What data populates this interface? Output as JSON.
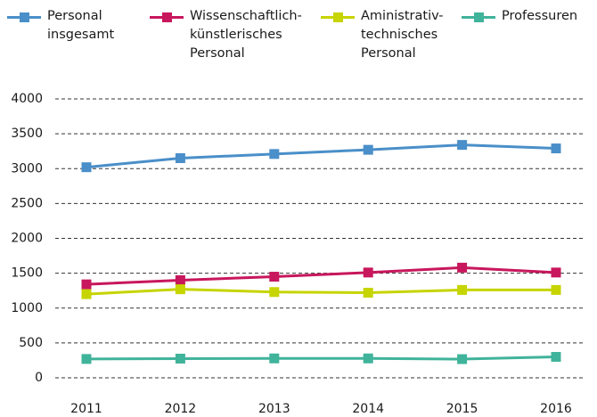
{
  "chart_data": {
    "type": "line",
    "categories": [
      "2011",
      "2012",
      "2013",
      "2014",
      "2015",
      "2016"
    ],
    "series": [
      {
        "name": "Personal insgesamt",
        "color": "#4a8fc9",
        "values": [
          3020,
          3150,
          3210,
          3270,
          3340,
          3290
        ]
      },
      {
        "name": "Wissenschaftlich-künstlerisches Personal",
        "color": "#c8175d",
        "values": [
          1340,
          1400,
          1450,
          1510,
          1580,
          1510
        ]
      },
      {
        "name": "Aministrativ-technisches Personal",
        "color": "#c6d400",
        "values": [
          1200,
          1270,
          1230,
          1220,
          1260,
          1260
        ]
      },
      {
        "name": "Professuren",
        "color": "#40b39b",
        "values": [
          270,
          275,
          278,
          278,
          268,
          300
        ]
      }
    ],
    "ylim": [
      0,
      4000
    ],
    "yticks": [
      0,
      500,
      1000,
      1500,
      2000,
      2500,
      3000,
      3500,
      4000
    ],
    "grid": true,
    "legend": "top"
  }
}
